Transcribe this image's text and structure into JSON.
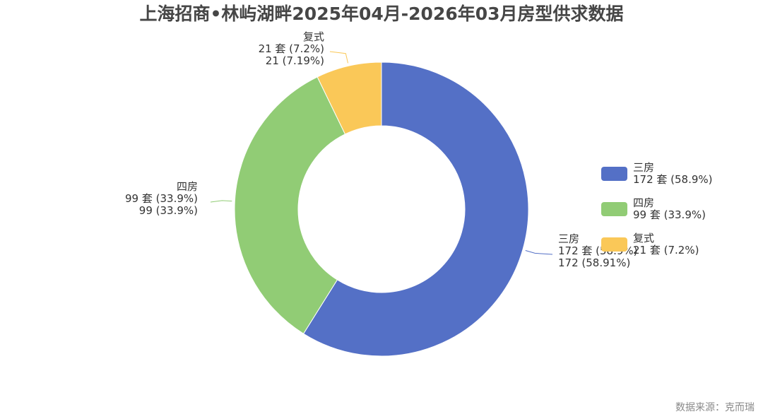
{
  "chart_data": {
    "type": "pie",
    "subtype": "donut",
    "title": "上海招商•林屿湖畔2025年04月-2026年03月房型供求数据",
    "series": [
      {
        "name": "三房",
        "value": 172,
        "unit_label": "172 套 (58.9%)",
        "detail_label": "172 (58.91%)",
        "color": "#5470c6"
      },
      {
        "name": "四房",
        "value": 99,
        "unit_label": "99 套 (33.9%)",
        "detail_label": "99 (33.9%)",
        "color": "#91cc75"
      },
      {
        "name": "复式",
        "value": 21,
        "unit_label": "21 套 (7.2%)",
        "detail_label": "21 (7.19%)",
        "color": "#fac858"
      }
    ],
    "legend_position": "right"
  },
  "source": "数据来源：克而瑞"
}
